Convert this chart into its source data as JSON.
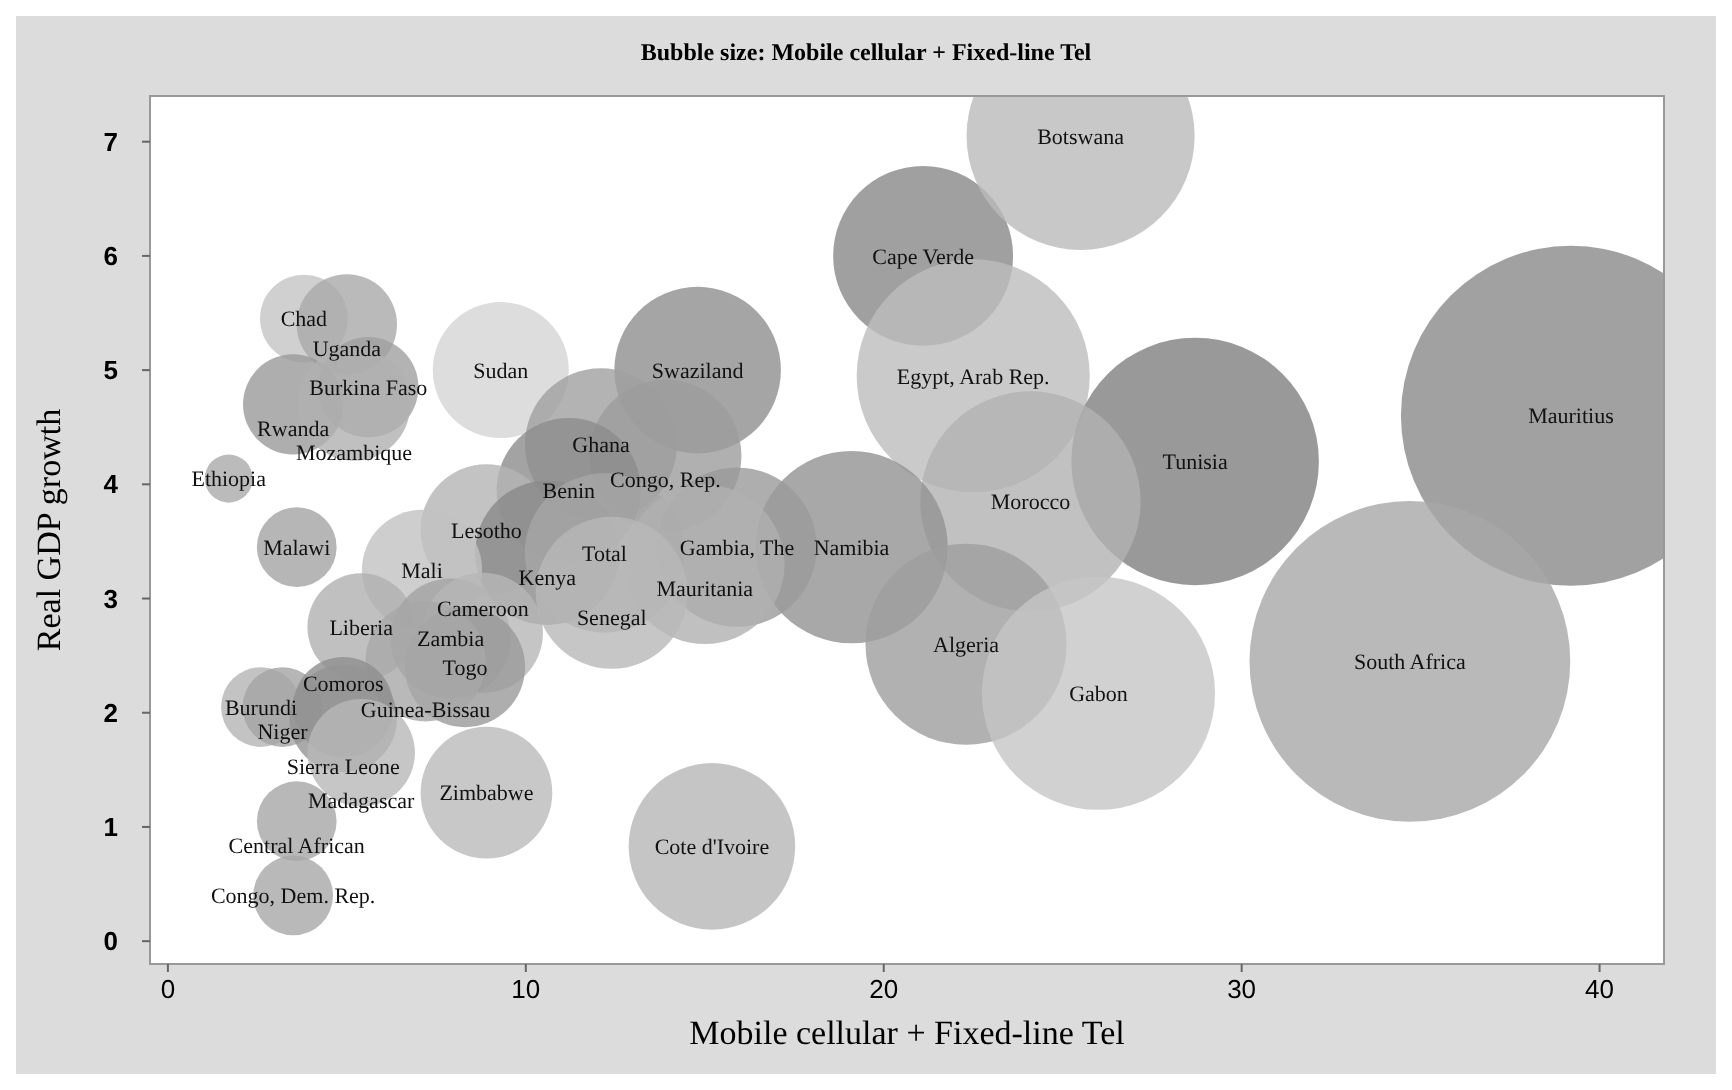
{
  "chart_data": {
    "type": "bubble",
    "title": "Bubble size: Mobile cellular + Fixed-line Tel",
    "xlabel": "Mobile cellular + Fixed-line Tel",
    "ylabel": "Real GDP growth",
    "xlim": [
      -0.5,
      41.8
    ],
    "ylim": [
      -0.2,
      7.4
    ],
    "xticks": [
      0,
      10,
      20,
      30,
      40
    ],
    "yticks": [
      0,
      1,
      2,
      3,
      4,
      5,
      6,
      7
    ],
    "grid": false,
    "x": [
      3.8,
      5.0,
      5.6,
      3.5,
      5.2,
      9.3,
      1.7,
      3.6,
      14.8,
      21.1,
      25.5,
      22.5,
      39.2,
      28.7,
      24.1,
      19.1,
      22.3,
      26.0,
      34.7,
      12.1,
      13.9,
      11.2,
      8.9,
      10.6,
      12.2,
      15.9,
      15.0,
      12.4,
      7.1,
      5.4,
      7.9,
      8.8,
      8.3,
      7.2,
      2.6,
      3.2,
      4.9,
      4.9,
      5.4,
      8.9,
      3.6,
      3.5,
      15.2
    ],
    "values": [
      5.45,
      5.4,
      4.85,
      4.7,
      4.7,
      5.0,
      4.05,
      3.45,
      5.0,
      6.0,
      7.05,
      4.95,
      4.6,
      4.2,
      3.85,
      3.45,
      2.6,
      2.17,
      2.45,
      4.35,
      4.25,
      3.95,
      3.6,
      3.4,
      3.4,
      3.45,
      3.3,
      3.05,
      3.25,
      2.75,
      2.65,
      2.7,
      2.4,
      2.45,
      2.05,
      2.05,
      2.05,
      1.95,
      1.65,
      1.3,
      1.05,
      0.4,
      0.83
    ],
    "sizes": [
      0.067,
      0.087,
      0.087,
      0.087,
      0.11,
      0.16,
      0.02,
      0.055,
      0.24,
      0.28,
      0.45,
      0.47,
      1,
      0.53,
      0.42,
      0.32,
      0.35,
      0.47,
      0.89,
      0.2,
      0.2,
      0.18,
      0.15,
      0.18,
      0.22,
      0.22,
      0.22,
      0.2,
      0.125,
      0.1,
      0.125,
      0.125,
      0.125,
      0.125,
      0.055,
      0.055,
      0.087,
      0.1,
      0.1,
      0.15,
      0.055,
      0.055,
      0.24
    ],
    "colors": [
      "#c4c4c4",
      "#a9a9a9",
      "#a0a0a0",
      "#9a9a9a",
      "#b0b0b0",
      "#d4d4d4",
      "#aaaaaa",
      "#a4a4a4",
      "#8e8e8e",
      "#888888",
      "#bababa",
      "#bdbdbd",
      "#8a8a8a",
      "#7f7f7f",
      "#b2b2b2",
      "#929292",
      "#9e9e9e",
      "#c6c6c6",
      "#a8a8a8",
      "#a0a0a0",
      "#9c9c9c",
      "#8c8c8c",
      "#b4b4b4",
      "#8a8a8a",
      "#a6a6a6",
      "#9a9a9a",
      "#b0b0b0",
      "#b8b8b8",
      "#c2c2c2",
      "#b0b0b0",
      "#a2a2a2",
      "#b6b6b6",
      "#9a9a9a",
      "#a8a8a8",
      "#b4b4b4",
      "#a4a4a4",
      "#8e8e8e",
      "#949494",
      "#b8b8b8",
      "#bababa",
      "#a6a6a6",
      "#a8a8a8",
      "#b6b6b6"
    ],
    "annotations": [
      {
        "text": "Chad",
        "x": 3.8,
        "y": 5.45
      },
      {
        "text": "Uganda",
        "x": 5.0,
        "y": 5.4
      },
      {
        "text": "Burkina Faso",
        "x": 5.6,
        "y": 4.85
      },
      {
        "text": "Rwanda",
        "x": 3.5,
        "y": 4.7
      },
      {
        "text": "Mozambique",
        "x": 5.2,
        "y": 4.7
      },
      {
        "text": "Sudan",
        "x": 9.3,
        "y": 5.0
      },
      {
        "text": "Ethiopia",
        "x": 1.7,
        "y": 4.05
      },
      {
        "text": "Malawi",
        "x": 3.6,
        "y": 3.45
      },
      {
        "text": "Swaziland",
        "x": 14.8,
        "y": 5.0
      },
      {
        "text": "Cape Verde",
        "x": 21.1,
        "y": 6.0
      },
      {
        "text": "Botswana",
        "x": 25.5,
        "y": 7.05
      },
      {
        "text": "Egypt, Arab Rep.",
        "x": 22.5,
        "y": 4.95
      },
      {
        "text": "Mauritius",
        "x": 39.2,
        "y": 4.6
      },
      {
        "text": "Tunisia",
        "x": 28.7,
        "y": 4.2
      },
      {
        "text": "Morocco",
        "x": 24.1,
        "y": 3.85
      },
      {
        "text": "Namibia",
        "x": 19.1,
        "y": 3.45
      },
      {
        "text": "Algeria",
        "x": 22.3,
        "y": 2.6
      },
      {
        "text": "Gabon",
        "x": 26.0,
        "y": 2.17
      },
      {
        "text": "South Africa",
        "x": 34.7,
        "y": 2.45
      },
      {
        "text": "Ghana",
        "x": 12.1,
        "y": 4.35
      },
      {
        "text": "Congo, Rep.",
        "x": 13.9,
        "y": 4.25
      },
      {
        "text": "Benin",
        "x": 11.2,
        "y": 3.95
      },
      {
        "text": "Lesotho",
        "x": 8.9,
        "y": 3.6
      },
      {
        "text": "Kenya",
        "x": 10.6,
        "y": 3.4
      },
      {
        "text": "Total",
        "x": 12.2,
        "y": 3.4
      },
      {
        "text": "Gambia, The",
        "x": 15.9,
        "y": 3.45
      },
      {
        "text": "Mauritania",
        "x": 15.0,
        "y": 3.3
      },
      {
        "text": "Senegal",
        "x": 12.4,
        "y": 3.05
      },
      {
        "text": "Mali",
        "x": 7.1,
        "y": 3.25
      },
      {
        "text": "Liberia",
        "x": 5.4,
        "y": 2.75
      },
      {
        "text": "Zambia",
        "x": 7.9,
        "y": 2.65
      },
      {
        "text": "Cameroon",
        "x": 8.8,
        "y": 2.7
      },
      {
        "text": "Togo",
        "x": 8.3,
        "y": 2.4
      },
      {
        "text": "Guinea-Bissau",
        "x": 7.2,
        "y": 2.45
      },
      {
        "text": "Burundi",
        "x": 2.6,
        "y": 2.05
      },
      {
        "text": "Niger",
        "x": 3.2,
        "y": 2.05
      },
      {
        "text": "Comoros",
        "x": 4.9,
        "y": 2.05
      },
      {
        "text": "Sierra Leone",
        "x": 4.9,
        "y": 1.95
      },
      {
        "text": "Madagascar",
        "x": 5.4,
        "y": 1.65
      },
      {
        "text": "Zimbabwe",
        "x": 8.9,
        "y": 1.3
      },
      {
        "text": "Central African",
        "x": 3.6,
        "y": 1.05
      },
      {
        "text": "Congo, Dem. Rep.",
        "x": 3.5,
        "y": 0.4
      },
      {
        "text": "Cote d'Ivoire",
        "x": 15.2,
        "y": 0.83
      }
    ]
  }
}
